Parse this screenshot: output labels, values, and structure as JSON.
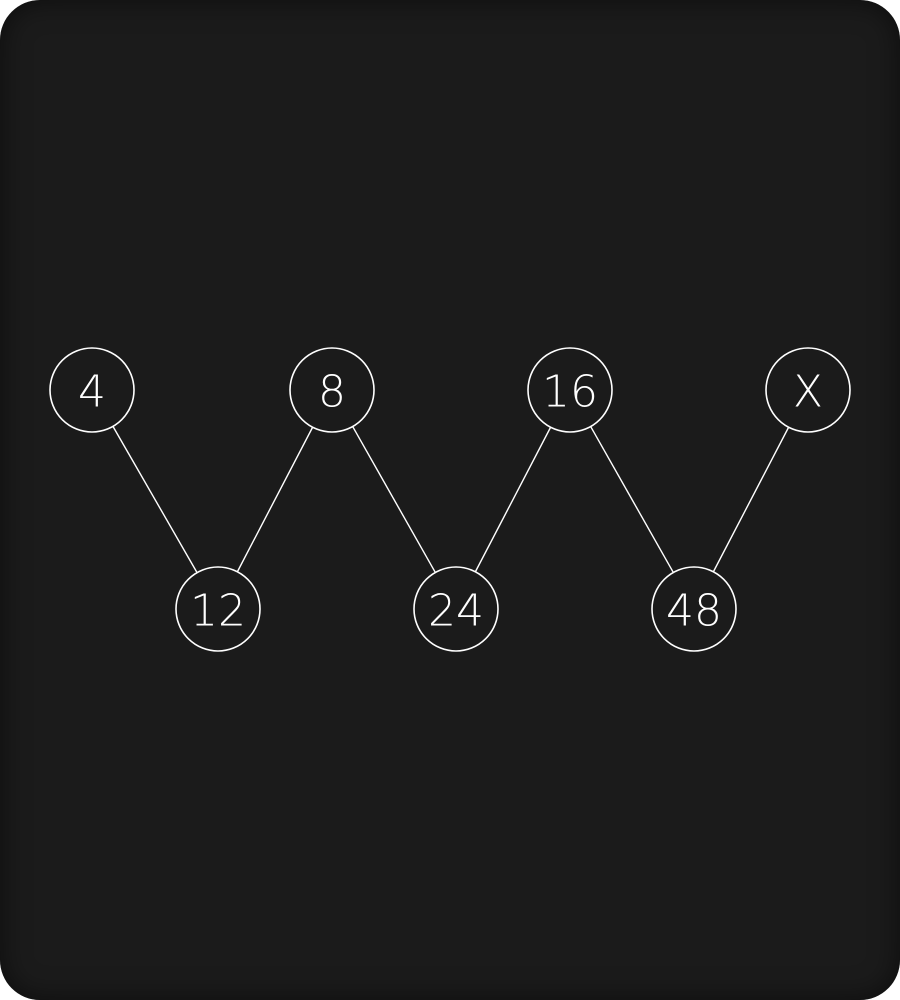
{
  "puzzle": {
    "nodes": [
      {
        "id": "n1",
        "label": "4",
        "row": "top"
      },
      {
        "id": "n2",
        "label": "12",
        "row": "bottom"
      },
      {
        "id": "n3",
        "label": "8",
        "row": "top"
      },
      {
        "id": "n4",
        "label": "24",
        "row": "bottom"
      },
      {
        "id": "n5",
        "label": "16",
        "row": "top"
      },
      {
        "id": "n6",
        "label": "48",
        "row": "bottom"
      },
      {
        "id": "n7",
        "label": "X",
        "row": "top"
      }
    ],
    "edges": [
      [
        "n1",
        "n2"
      ],
      [
        "n2",
        "n3"
      ],
      [
        "n3",
        "n4"
      ],
      [
        "n4",
        "n5"
      ],
      [
        "n5",
        "n6"
      ],
      [
        "n6",
        "n7"
      ]
    ]
  },
  "colors": {
    "background": "#1b1b1b",
    "stroke": "#ffffff",
    "text": "#ffffff"
  }
}
